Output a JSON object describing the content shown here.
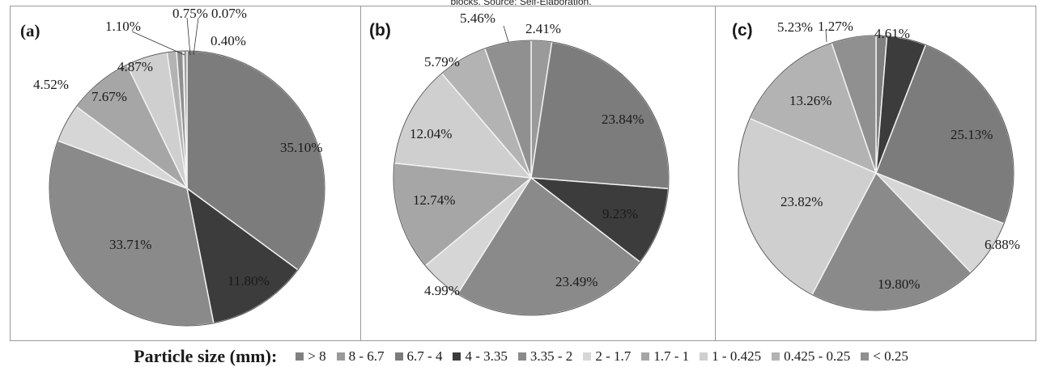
{
  "caption": "blocks. Source: Self-Elaboration.",
  "legend": {
    "title": "Particle size (mm):",
    "items": [
      {
        "label": "> 8",
        "color": "#808080"
      },
      {
        "label": "8 - 6.7",
        "color": "#9a9a9a"
      },
      {
        "label": "6.7 - 4",
        "color": "#7c7c7c"
      },
      {
        "label": "4 - 3.35",
        "color": "#3c3c3c"
      },
      {
        "label": "3.35 - 2",
        "color": "#8a8a8a"
      },
      {
        "label": "2 - 1.7",
        "color": "#d6d6d6"
      },
      {
        "label": "1.7 - 1",
        "color": "#a6a6a6"
      },
      {
        "label": "1 - 0.425",
        "color": "#cfcfcf"
      },
      {
        "label": "0.425 - 0.25",
        "color": "#b3b3b3"
      },
      {
        "label": "< 0.25",
        "color": "#909090"
      }
    ]
  },
  "chart_data": [
    {
      "type": "pie",
      "panel_label": "(a)",
      "categories": [
        "> 8",
        "8 - 6.7",
        "6.7 - 4",
        "4 - 3.35",
        "3.35 - 2",
        "2 - 1.7",
        "1.7 - 1",
        "1 - 0.425",
        "0.425 - 0.25",
        "< 0.25"
      ],
      "slices": [
        {
          "category": "6.7 - 4",
          "value": 35.1,
          "label": "35.10%"
        },
        {
          "category": "4 - 3.35",
          "value": 11.8,
          "label": "11.80%"
        },
        {
          "category": "3.35 - 2",
          "value": 33.71,
          "label": "33.71%"
        },
        {
          "category": "2 - 1.7",
          "value": 4.52,
          "label": "4.52%"
        },
        {
          "category": "1.7 - 1",
          "value": 7.67,
          "label": "7.67%"
        },
        {
          "category": "1 - 0.425",
          "value": 4.87,
          "label": "4.87%"
        },
        {
          "category": "0.425 - 0.25",
          "value": 1.1,
          "label": "1.10%"
        },
        {
          "category": "< 0.25",
          "value": 0.75,
          "label": "0.75%"
        },
        {
          "category": "> 8",
          "value": 0.07,
          "label": "0.07%"
        },
        {
          "category": "8 - 6.7",
          "value": 0.4,
          "label": "0.40%"
        }
      ]
    },
    {
      "type": "pie",
      "panel_label": "(b)",
      "categories": [
        "> 8",
        "8 - 6.7",
        "6.7 - 4",
        "4 - 3.35",
        "3.35 - 2",
        "2 - 1.7",
        "1.7 - 1",
        "1 - 0.425",
        "0.425 - 0.25",
        "< 0.25"
      ],
      "slices": [
        {
          "category": "8 - 6.7",
          "value": 2.41,
          "label": "2.41%"
        },
        {
          "category": "6.7 - 4",
          "value": 23.84,
          "label": "23.84%"
        },
        {
          "category": "4 - 3.35",
          "value": 9.23,
          "label": "9.23%"
        },
        {
          "category": "3.35 - 2",
          "value": 23.49,
          "label": "23.49%"
        },
        {
          "category": "2 - 1.7",
          "value": 4.99,
          "label": "4.99%"
        },
        {
          "category": "1.7 - 1",
          "value": 12.74,
          "label": "12.74%"
        },
        {
          "category": "1 - 0.425",
          "value": 12.04,
          "label": "12.04%"
        },
        {
          "category": "0.425 - 0.25",
          "value": 5.79,
          "label": "5.79%"
        },
        {
          "category": "< 0.25",
          "value": 5.46,
          "label": "5.46%"
        }
      ]
    },
    {
      "type": "pie",
      "panel_label": "(c)",
      "categories": [
        "> 8",
        "8 - 6.7",
        "6.7 - 4",
        "4 - 3.35",
        "3.35 - 2",
        "2 - 1.7",
        "1.7 - 1",
        "1 - 0.425",
        "0.425 - 0.25",
        "< 0.25"
      ],
      "slices": [
        {
          "category": "> 8",
          "value": 1.27,
          "label": "1.27%"
        },
        {
          "category": "4 - 3.35",
          "value": 4.61,
          "label": "4.61%"
        },
        {
          "category": "6.7 - 4",
          "value": 25.13,
          "label": "25.13%"
        },
        {
          "category": "2 - 1.7",
          "value": 6.88,
          "label": "6.88%"
        },
        {
          "category": "3.35 - 2",
          "value": 19.8,
          "label": "19.80%"
        },
        {
          "category": "1 - 0.425",
          "value": 23.82,
          "label": "23.82%"
        },
        {
          "category": "0.425 - 0.25",
          "value": 13.26,
          "label": "13.26%"
        },
        {
          "category": "< 0.25",
          "value": 5.23,
          "label": "5.23%"
        }
      ]
    }
  ]
}
